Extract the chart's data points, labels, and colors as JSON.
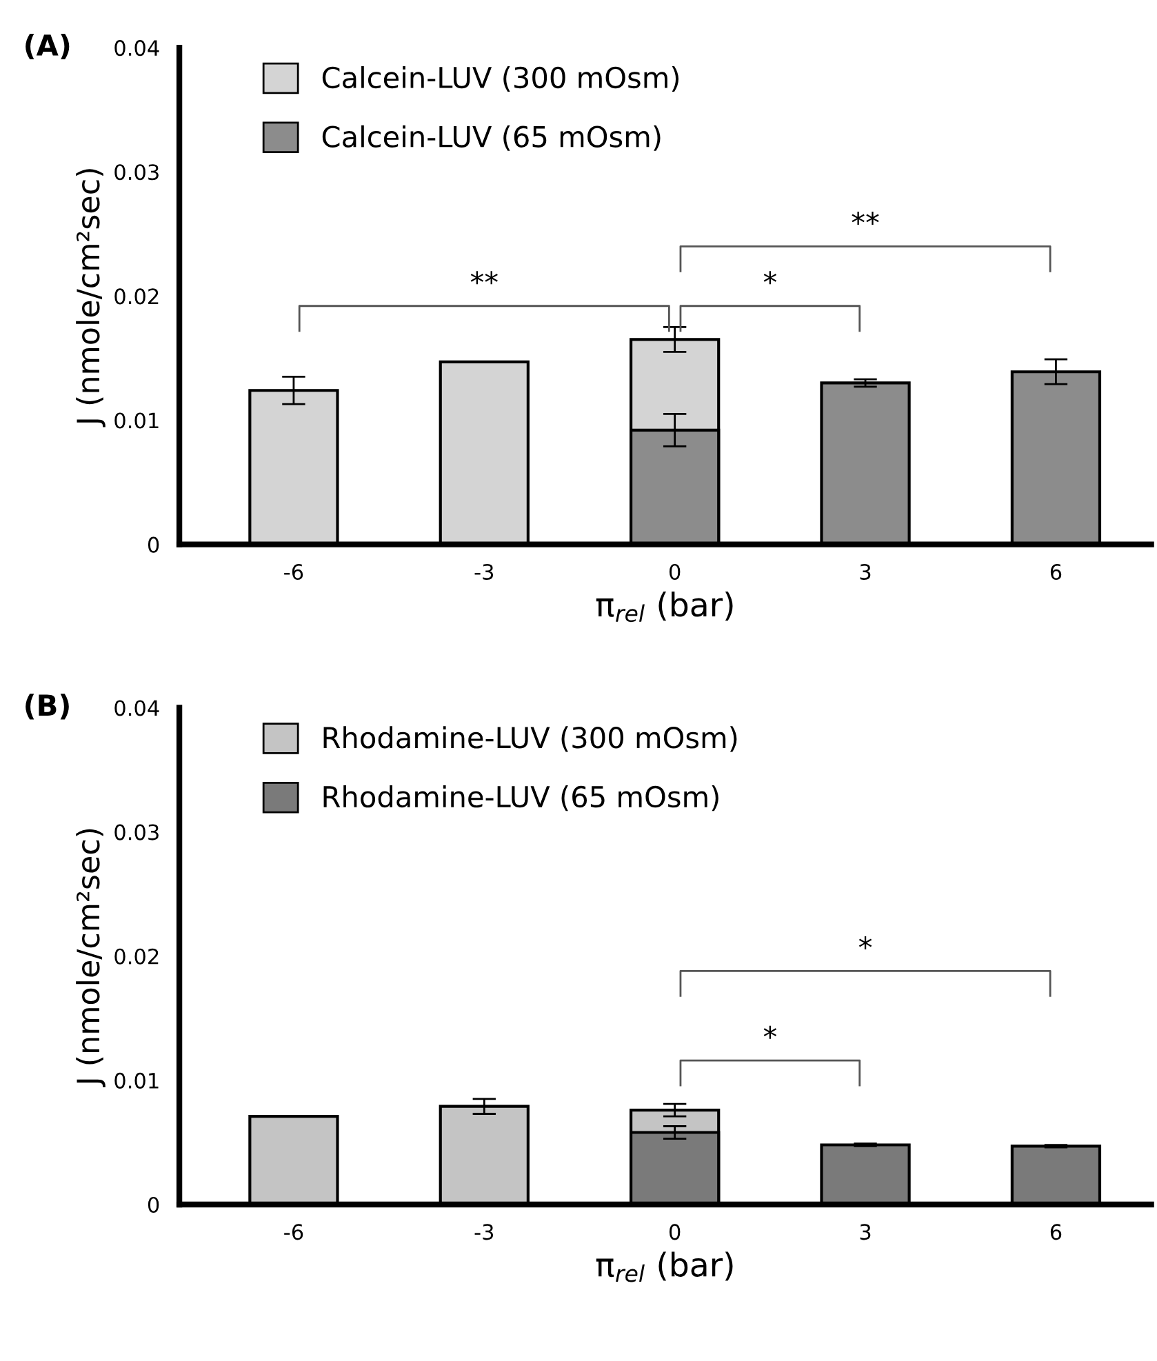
{
  "chart_data": [
    {
      "type": "bar",
      "title": "(A)",
      "xlabel": "π$_{rel}$ (bar)",
      "ylabel": "J (nmole/cm²sec)",
      "categories": [
        "-6",
        "-3",
        "0",
        "3",
        "6"
      ],
      "series": [
        {
          "name": "Calcein-LUV (300 mOsm)",
          "color": "#d4d4d4",
          "values": [
            0.0124,
            0.0147,
            0.0165,
            null,
            null
          ],
          "errors": [
            0.0011,
            null,
            0.001,
            null,
            null
          ]
        },
        {
          "name": "Calcein-LUV (65 mOsm)",
          "color": "#8c8c8c",
          "values": [
            null,
            null,
            0.0092,
            0.013,
            0.0139
          ],
          "errors": [
            null,
            null,
            0.0013,
            0.0003,
            0.001
          ]
        }
      ],
      "ylim": [
        0,
        0.04
      ],
      "yticks": [
        0,
        0.01,
        0.02,
        0.03,
        0.04
      ],
      "grid": false,
      "legend": "top left",
      "annotations": [
        "**",
        "*",
        "**"
      ]
    },
    {
      "type": "bar",
      "title": "(B)",
      "xlabel": "π$_{rel}$ (bar)",
      "ylabel": "J (nmole/cm²sec)",
      "categories": [
        "-6",
        "-3",
        "0",
        "3",
        "6"
      ],
      "series": [
        {
          "name": "Rhodamine-LUV (300 mOsm)",
          "color": "#c4c4c4",
          "values": [
            0.0071,
            0.0079,
            0.0076,
            null,
            null
          ],
          "errors": [
            null,
            0.0006,
            0.0005,
            null,
            null
          ]
        },
        {
          "name": "Rhodamine-LUV (65 mOsm)",
          "color": "#7a7a7a",
          "values": [
            null,
            null,
            0.0058,
            0.0048,
            0.0047
          ],
          "errors": [
            null,
            null,
            0.0005,
            0.0001,
            0.0001
          ]
        }
      ],
      "ylim": [
        0,
        0.04
      ],
      "yticks": [
        0,
        0.01,
        0.02,
        0.03,
        0.04
      ],
      "grid": false,
      "legend": "top left",
      "annotations": [
        "*",
        "*"
      ]
    }
  ]
}
